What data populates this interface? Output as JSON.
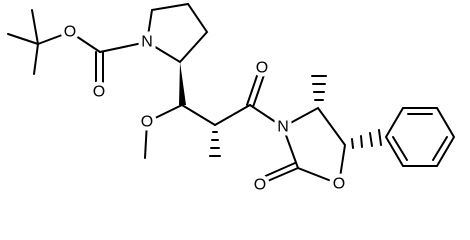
{
  "atoms": [
    {
      "label": "O"
    },
    {
      "label": "N"
    },
    {
      "label": "O"
    },
    {
      "label": "O"
    },
    {
      "label": "O"
    },
    {
      "label": "N"
    },
    {
      "label": "O"
    },
    {
      "label": "O"
    }
  ]
}
